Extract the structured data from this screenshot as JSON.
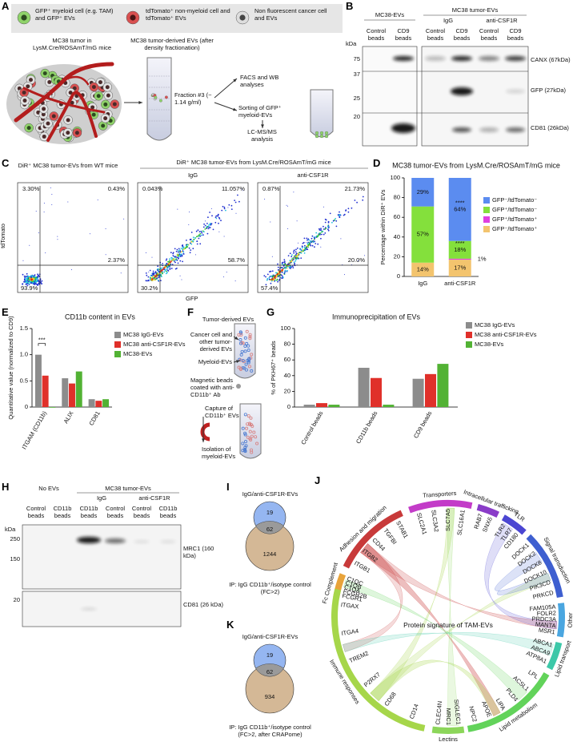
{
  "panel_labels": [
    "A",
    "B",
    "C",
    "D",
    "E",
    "F",
    "G",
    "H",
    "I",
    "J",
    "K"
  ],
  "panel_a": {
    "legend": [
      "GFP⁺ myeloid cell (e.g. TAM) and GFP⁺ EVs",
      "tdTomato⁺ non-myeloid cell and tdTomato⁺ EVs",
      "Non fluorescent cancer cell and EVs"
    ],
    "tumor": "MC38 tumor in LysM.Cre/ROSAmT/mG mice",
    "evs": "MC38 tumor-derived EVs (after density fractionation)",
    "fraction": "Fraction #3 (~ 1.14 g/ml)",
    "facs": "FACS and WB analyses",
    "sorting": "Sorting of GFP⁺ myeloid-EVs",
    "lcms": "LC-MS/MS analysis"
  },
  "panel_b": {
    "group1": "MC38-EVs",
    "group2": "MC38 tumor-EVs",
    "sub1": "IgG",
    "sub2": "anti-CSF1R",
    "lanes": [
      "Control beads",
      "CD9 beads",
      "Control beads",
      "CD9 beads",
      "Control beads",
      "CD9 beads"
    ],
    "kda": "kDa",
    "markers": [
      75,
      37,
      25,
      20
    ],
    "proteins": [
      "CANX (67kDa)",
      "GFP (27kDa)",
      "CD81 (26kDa)"
    ]
  },
  "panel_c": {
    "header1": "DiR⁺ MC38 tumor-EVs from WT mice",
    "header2": "DiR⁺ MC38 tumor-EVs from LysM.Cre/ROSAmT/mG mice",
    "sub1": "IgG",
    "sub2": "anti-CSF1R",
    "y_label": "tdTomato",
    "x_label": "GFP",
    "plots": [
      {
        "quadrants": [
          "3.30%",
          "0.43%",
          "2.37%",
          "93.9%"
        ]
      },
      {
        "quadrants": [
          "0.043%",
          "11.057%",
          "58.7%",
          "30.2%"
        ]
      },
      {
        "quadrants": [
          "0.87%",
          "21.73%",
          "20.0%",
          "57.4%"
        ]
      }
    ]
  },
  "chart_data": [
    {
      "type": "bar",
      "stacked": true,
      "title": "MC38 tumor-EVs from LysM.Cre/ROSAmT/mG mice",
      "y_label": "Percentage within DiR⁺ EVs",
      "categories": [
        "IgG",
        "anti-CSF1R"
      ],
      "series": [
        {
          "name": "GFP⁻/tdTomato⁺",
          "color": "#f3c46e",
          "values": [
            14,
            17
          ],
          "value_labels": [
            "14%",
            "17%"
          ]
        },
        {
          "name": "GFP⁺/tdTomato⁺",
          "color": "#e040e0",
          "values": [
            0,
            1
          ],
          "value_labels": [
            null,
            "1%"
          ]
        },
        {
          "name": "GFP⁺/tdTomato⁻",
          "color": "#84e03c",
          "values": [
            57,
            18
          ],
          "value_labels": [
            "57%",
            "18%"
          ]
        },
        {
          "name": "GFP⁻/tdTomato⁻",
          "color": "#5b8cf0",
          "values": [
            29,
            64
          ],
          "value_labels": [
            "29%",
            "64%"
          ]
        }
      ],
      "ylim": [
        0,
        100
      ],
      "yticks": [
        0,
        20,
        40,
        60,
        80,
        100
      ],
      "annotations": [
        "****",
        "****"
      ]
    },
    {
      "type": "bar",
      "title": "CD11b content in EVs",
      "y_label": "Quantitative value (normalized to CD9)",
      "categories": [
        "ITGAM (CD11b)",
        "ALIX",
        "CD81"
      ],
      "series": [
        {
          "name": "MC38 IgG-EVs",
          "color": "#8c8c8c",
          "values": [
            1.0,
            0.55,
            0.15
          ]
        },
        {
          "name": "MC38 anti-CSF1R-EVs",
          "color": "#e0302a",
          "values": [
            0.6,
            0.45,
            0.12
          ]
        },
        {
          "name": "MC38-EVs",
          "color": "#52b234",
          "values": [
            0.0,
            0.68,
            0.15
          ]
        }
      ],
      "ylim": [
        0,
        1.5
      ],
      "yticks": [
        0,
        0.5,
        {
          "value": 1.0,
          "label": "1.0"
        },
        1.5
      ],
      "annotations": [
        "***"
      ]
    },
    {
      "type": "bar",
      "title": "Immunoprecipitation of EVs",
      "y_label": "% of PKH67⁺ beads",
      "categories": [
        "Control beads",
        "CD11b beads",
        "CD9 beads"
      ],
      "series": [
        {
          "name": "MC38 IgG-EVs",
          "color": "#8c8c8c",
          "values": [
            3,
            50,
            36
          ]
        },
        {
          "name": "MC38 anti-CSF1R-EVs",
          "color": "#e0302a",
          "values": [
            5,
            37,
            42
          ]
        },
        {
          "name": "MC38-EVs",
          "color": "#52b234",
          "values": [
            3,
            3,
            55
          ]
        }
      ],
      "ylim": [
        0,
        100
      ],
      "yticks": [
        0,
        20,
        40,
        60,
        80,
        100
      ]
    }
  ],
  "panel_f": {
    "title": "Tumor-derived EVs",
    "cancer": "Cancer cell and other tumor-derived EVs",
    "myeloid": "Myeloid-EVs",
    "beads": "Magnetic beads coated with anti-CD11b⁺ Ab",
    "capture": "Capture of CD11b⁺ EVs",
    "isolation": "Isolation of myeloid-EVs"
  },
  "panel_h": {
    "group0": "No EVs",
    "group1": "MC38 tumor-EVs",
    "sub1": "IgG",
    "sub2": "anti-CSF1R",
    "lanes": [
      "Control beads",
      "CD11b beads",
      "CD11b beads",
      "Control beads",
      "Control beads",
      "CD11b beads"
    ],
    "kda": "kDa",
    "markers": [
      250,
      150,
      20
    ],
    "proteins": [
      "MRC1 (160 kDa)",
      "CD81 (26 kDa)"
    ]
  },
  "panel_i": {
    "title": "IgG/anti-CSF1R-EVs",
    "top": 19,
    "overlap": 62,
    "bottom": 1244,
    "caption": "IP: IgG CD11b⁺/isotype control (FC>2)"
  },
  "panel_j": {
    "center": "Protein signature of TAM-EVs",
    "groups": [
      {
        "name": "Fc Complement",
        "genes": [
          "FCGR1",
          "FCGR2B",
          "C1QA",
          "C1QB",
          "C1QC"
        ]
      },
      {
        "name": "Adhesion and migration",
        "genes": [
          "ITGB1",
          "ITGB2",
          "CD44",
          "TGFBI",
          "STAB1"
        ]
      },
      {
        "name": "Transporters",
        "genes": [
          "SLC2A1",
          "SLC3A2",
          "SLC7A5",
          "SLC16A1"
        ]
      },
      {
        "name": "Intracellular trafficking",
        "genes": [
          "RAB7",
          "SNX6"
        ]
      },
      {
        "name": "TLR",
        "genes": [
          "TLR2",
          "TLR7",
          "CD180"
        ]
      },
      {
        "name": "Signal transduction",
        "genes": [
          "DOCK1",
          "DOCK2",
          "DOCK8",
          "DOCK10",
          "PIK3CD",
          "PRKCD"
        ]
      },
      {
        "name": "Other",
        "genes": [
          "FAM105A",
          "FOLR2",
          "PRDC3A",
          "MANTA",
          "MSR1"
        ]
      },
      {
        "name": "Lipid transport",
        "genes": [
          "ABCA1",
          "ABCA9",
          "ATP8A1"
        ]
      },
      {
        "name": "Lipid metabolism",
        "genes": [
          "LPL",
          "ACSL1",
          "PLD4",
          "LIPA",
          "APOE",
          "NPC2"
        ]
      },
      {
        "name": "Lectins",
        "genes": [
          "SIGLEC1",
          "MRC1",
          "CLEC4N"
        ]
      },
      {
        "name": "Immune responses",
        "genes": [
          "CD14",
          "CD68",
          "P2RX7",
          "TREM2",
          "ITGA4",
          "ITGAX"
        ]
      }
    ]
  },
  "panel_k": {
    "title": "IgG/anti-CSF1R-EVs",
    "top": 19,
    "overlap": 62,
    "bottom": 934,
    "caption": "IP: IgG CD11b⁺/isotype control (FC>2, after CRAPome)"
  }
}
